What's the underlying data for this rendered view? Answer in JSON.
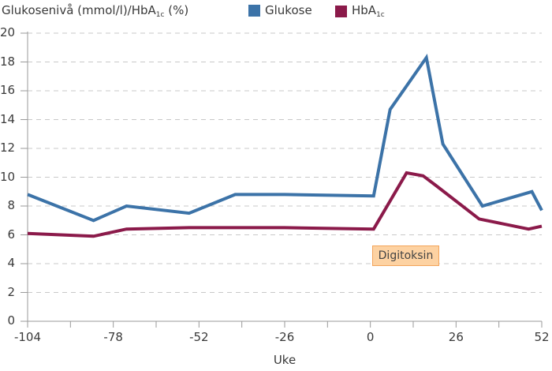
{
  "chart_data": {
    "type": "line",
    "title": "",
    "ylabel": "Glukosenivå (mmol/l)/HbA1c (%)",
    "ylabel_main": "Glukosenivå (mmol/l)/HbA",
    "ylabel_sub": "1c",
    "ylabel_tail": " (%)",
    "xlabel": "Uke",
    "xlim": [
      -104,
      52
    ],
    "ylim": [
      0,
      20
    ],
    "x_ticks": [
      -104,
      -78,
      -52,
      -26,
      0,
      26,
      52
    ],
    "x_minor_ticks_step": 13,
    "y_ticks": [
      0,
      2,
      4,
      6,
      8,
      10,
      12,
      14,
      16,
      18,
      20
    ],
    "grid": "horizontal dashed",
    "legend_position": "top",
    "series": [
      {
        "name": "Glukose",
        "color": "#3c73a8",
        "x": [
          -104,
          -84,
          -74,
          -55,
          -41,
          -26,
          1,
          6,
          17,
          22,
          34,
          49,
          52
        ],
        "values": [
          8.8,
          7.0,
          8.0,
          7.5,
          8.8,
          8.8,
          8.7,
          14.7,
          18.3,
          12.3,
          8.0,
          9.0,
          7.7
        ]
      },
      {
        "name": "HbA1c",
        "name_main": "HbA",
        "name_sub": "1c",
        "color": "#8b1a4a",
        "x": [
          -104,
          -84,
          -74,
          -55,
          -26,
          1,
          11,
          16,
          20,
          33,
          48,
          52
        ],
        "values": [
          6.1,
          5.9,
          6.4,
          6.5,
          6.5,
          6.4,
          10.3,
          10.1,
          9.4,
          7.1,
          6.4,
          6.6
        ]
      }
    ],
    "annotations": [
      {
        "text": "Digitoksin",
        "x": 10,
        "y": 4.5,
        "background": "#fdd2a2",
        "border": "#f3a45a"
      }
    ]
  }
}
